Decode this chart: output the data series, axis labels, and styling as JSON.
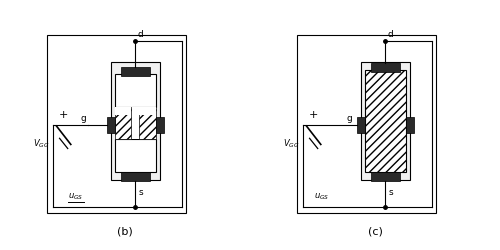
{
  "fig_width": 5.0,
  "fig_height": 2.5,
  "dpi": 100,
  "bg_color": "#ffffff",
  "label_b": "(b)",
  "label_c": "(c)",
  "label_d": "d",
  "label_g": "g",
  "label_s": "s",
  "label_VGG": "$V_{GG}$",
  "label_uGS": "$u_{GS}$",
  "label_plus": "+",
  "label_minus": "—",
  "line_color": "#000000",
  "dark_fill": "#2a2a2a",
  "light_fill": "#ffffff"
}
